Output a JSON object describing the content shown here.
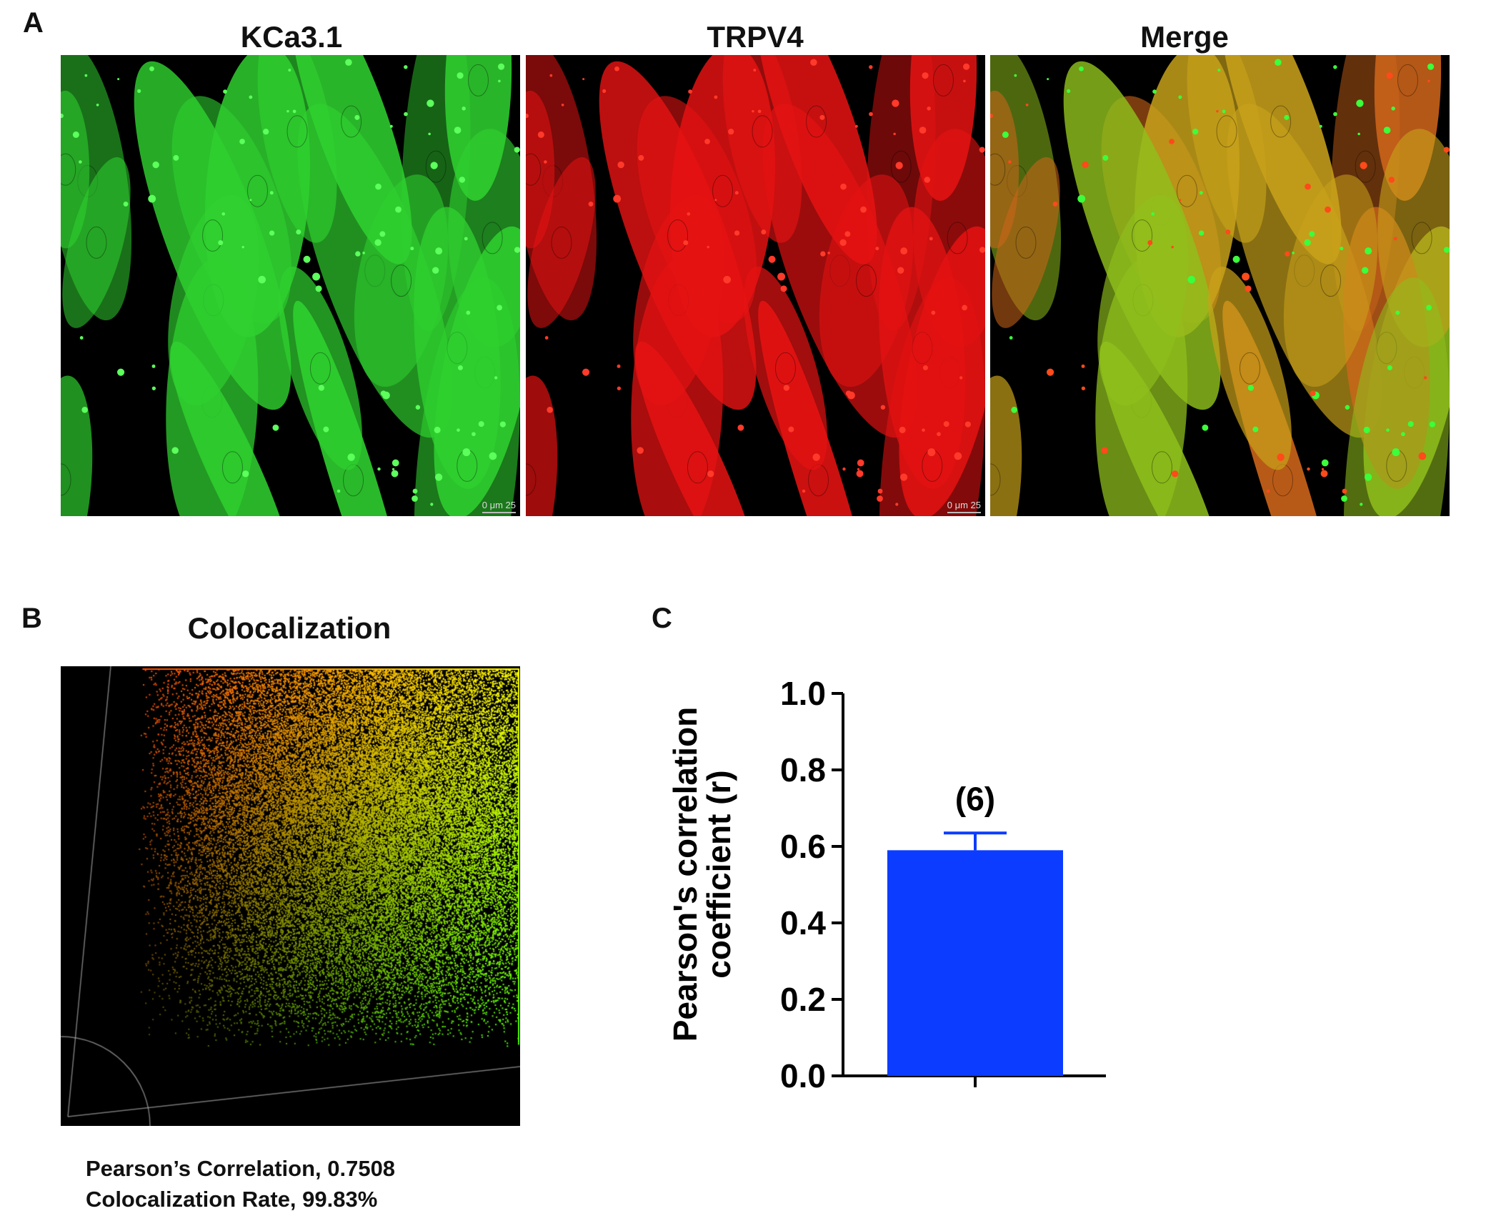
{
  "panel_a": {
    "letter": "A",
    "images": [
      {
        "title": "KCa3.1",
        "channel": "green",
        "scale_bar": "0   μm  25"
      },
      {
        "title": "TRPV4",
        "channel": "red",
        "scale_bar": "0   μm  25"
      },
      {
        "title": "Merge",
        "channel": "merge",
        "scale_bar": ""
      }
    ]
  },
  "panel_b": {
    "letter": "B",
    "title": "Colocalization",
    "pearson_line": "Pearson’s Correlation, 0.7508",
    "rate_line": "Colocalization Rate, 99.83%"
  },
  "panel_c": {
    "letter": "C"
  },
  "colors": {
    "green_channel": "#2fd12f",
    "red_channel": "#e51212",
    "bar_fill": "#0b3cff",
    "axis": "#000000"
  },
  "chart_data": {
    "type": "bar",
    "categories": [
      ""
    ],
    "values": [
      0.59
    ],
    "error": [
      0.045
    ],
    "annotations": [
      "(6)"
    ],
    "ylabel": "Pearson's correlation coefficient (r)",
    "ylabel_lines": [
      "Pearson's correlation",
      "coefficient (r)"
    ],
    "xlabel": "",
    "ylim": [
      0,
      1.0
    ],
    "yticks": [
      "0.0",
      "0.2",
      "0.4",
      "0.6",
      "0.8",
      "1.0"
    ]
  }
}
